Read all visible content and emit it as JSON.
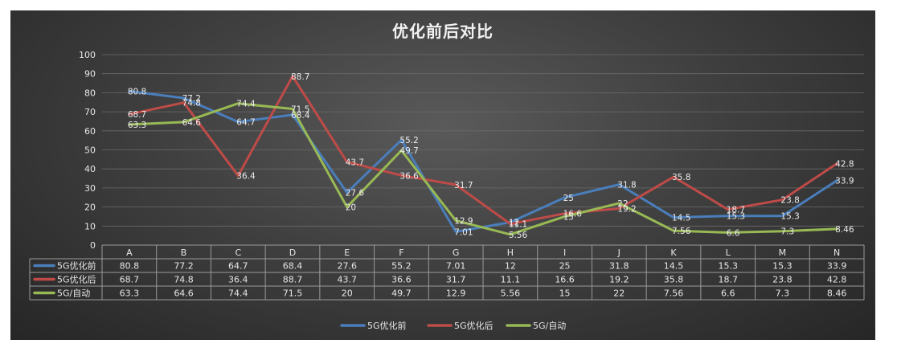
{
  "chart_data": {
    "type": "line",
    "title": "优化前后对比",
    "categories": [
      "A",
      "B",
      "C",
      "D",
      "E",
      "F",
      "G",
      "H",
      "I",
      "J",
      "K",
      "L",
      "M",
      "N"
    ],
    "ylim": [
      0,
      100
    ],
    "yticks": [
      0,
      10,
      20,
      30,
      40,
      50,
      60,
      70,
      80,
      90,
      100
    ],
    "grid": true,
    "legend": "bottom",
    "data_table": true,
    "series": [
      {
        "name": "5G优化前",
        "color": "#4a7ebb",
        "values": [
          80.8,
          77.2,
          64.7,
          68.4,
          27.6,
          55.2,
          7.01,
          12,
          25,
          31.8,
          14.5,
          15.3,
          15.3,
          33.9
        ],
        "labels": [
          "80.8",
          "77.2",
          "64.7",
          "68.4",
          "27.6",
          "55.2",
          "7.01",
          "12",
          "25",
          "31.8",
          "14.5",
          "15.3",
          "15.3",
          "33.9"
        ]
      },
      {
        "name": "5G优化后",
        "color": "#be4b48",
        "values": [
          68.7,
          74.8,
          36.4,
          88.7,
          43.7,
          36.6,
          31.7,
          11.1,
          16.6,
          19.2,
          35.8,
          18.7,
          23.8,
          42.8
        ],
        "labels": [
          "68.7",
          "74.8",
          "36.4",
          "88.7",
          "43.7",
          "36.6",
          "31.7",
          "11.1",
          "16.6",
          "19.2",
          "35.8",
          "18.7",
          "23.8",
          "42.8"
        ]
      },
      {
        "name": "5G/自动",
        "color": "#98b954",
        "values": [
          63.3,
          64.6,
          74.4,
          71.5,
          20,
          49.7,
          12.9,
          5.56,
          15,
          22,
          7.56,
          6.6,
          7.3,
          8.46
        ],
        "labels": [
          "63.3",
          "64.6",
          "74.4",
          "71.5",
          "20",
          "49.7",
          "12.9",
          "5.56",
          "15",
          "22",
          "7.56",
          "6.6",
          "7.3",
          "8.46"
        ]
      }
    ]
  }
}
